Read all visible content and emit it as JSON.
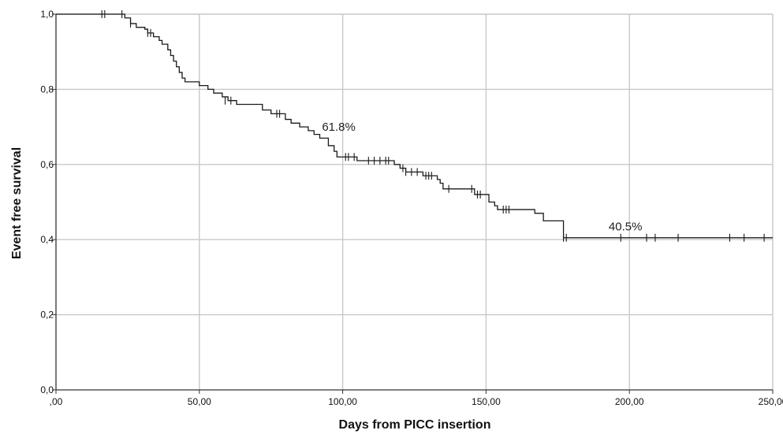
{
  "chart_data": {
    "type": "line",
    "subtype": "kaplan-meier step curve with censor marks",
    "xlabel": "Days from PICC insertion",
    "ylabel": "Event free survival",
    "xlim": [
      0,
      250
    ],
    "ylim": [
      0,
      1.0
    ],
    "x_ticks": [
      0,
      50,
      100,
      150,
      200,
      250
    ],
    "x_tick_labels": [
      ",00",
      "50,00",
      "100,00",
      "150,00",
      "200,00",
      "250,00"
    ],
    "y_ticks": [
      0,
      0.2,
      0.4,
      0.6,
      0.8,
      1.0
    ],
    "y_tick_labels": [
      "0,0",
      "0,2",
      "0,4",
      "0,6",
      "0,8",
      "1,0"
    ],
    "grid": true,
    "colors": {
      "curve": "#1a1a1a",
      "grid": "#c8c8c8",
      "axis": "#333333",
      "text": "#111111"
    },
    "series": [
      {
        "steps": [
          [
            0,
            1.0
          ],
          [
            24,
            0.99
          ],
          [
            26,
            0.975
          ],
          [
            28,
            0.965
          ],
          [
            31,
            0.96
          ],
          [
            32,
            0.95
          ],
          [
            34,
            0.94
          ],
          [
            36,
            0.93
          ],
          [
            37,
            0.92
          ],
          [
            39,
            0.905
          ],
          [
            40,
            0.89
          ],
          [
            41,
            0.875
          ],
          [
            42,
            0.86
          ],
          [
            43,
            0.845
          ],
          [
            44,
            0.83
          ],
          [
            45,
            0.82
          ],
          [
            50,
            0.81
          ],
          [
            53,
            0.8
          ],
          [
            55,
            0.79
          ],
          [
            58,
            0.78
          ],
          [
            60,
            0.77
          ],
          [
            63,
            0.76
          ],
          [
            72,
            0.745
          ],
          [
            75,
            0.735
          ],
          [
            80,
            0.72
          ],
          [
            82,
            0.71
          ],
          [
            85,
            0.7
          ],
          [
            88,
            0.69
          ],
          [
            90,
            0.68
          ],
          [
            92,
            0.67
          ],
          [
            95,
            0.65
          ],
          [
            97,
            0.635
          ],
          [
            98,
            0.62
          ],
          [
            105,
            0.61
          ],
          [
            118,
            0.6
          ],
          [
            120,
            0.59
          ],
          [
            122,
            0.58
          ],
          [
            128,
            0.57
          ],
          [
            133,
            0.56
          ],
          [
            134,
            0.55
          ],
          [
            135,
            0.535
          ],
          [
            146,
            0.52
          ],
          [
            151,
            0.5
          ],
          [
            153,
            0.49
          ],
          [
            154,
            0.48
          ],
          [
            167,
            0.47
          ],
          [
            170,
            0.45
          ],
          [
            177,
            0.405
          ],
          [
            250,
            0.405
          ]
        ],
        "censored": [
          [
            16,
            1.0
          ],
          [
            17,
            1.0
          ],
          [
            23,
            1.0
          ],
          [
            26,
            0.975
          ],
          [
            32,
            0.95
          ],
          [
            33,
            0.95
          ],
          [
            59,
            0.77
          ],
          [
            61,
            0.77
          ],
          [
            77,
            0.735
          ],
          [
            78,
            0.735
          ],
          [
            101,
            0.62
          ],
          [
            102,
            0.62
          ],
          [
            104,
            0.62
          ],
          [
            109,
            0.61
          ],
          [
            111,
            0.61
          ],
          [
            113,
            0.61
          ],
          [
            115,
            0.61
          ],
          [
            116,
            0.61
          ],
          [
            121,
            0.59
          ],
          [
            122,
            0.58
          ],
          [
            124,
            0.58
          ],
          [
            126,
            0.58
          ],
          [
            129,
            0.57
          ],
          [
            130,
            0.57
          ],
          [
            131,
            0.57
          ],
          [
            137,
            0.535
          ],
          [
            145,
            0.535
          ],
          [
            147,
            0.52
          ],
          [
            148,
            0.52
          ],
          [
            156,
            0.48
          ],
          [
            157,
            0.48
          ],
          [
            158,
            0.48
          ],
          [
            177,
            0.405
          ],
          [
            178,
            0.405
          ],
          [
            197,
            0.405
          ],
          [
            206,
            0.405
          ],
          [
            209,
            0.405
          ],
          [
            217,
            0.405
          ],
          [
            235,
            0.405
          ],
          [
            240,
            0.405
          ],
          [
            247,
            0.405
          ]
        ]
      }
    ],
    "annotations": [
      {
        "text": "61.8%",
        "x": 100,
        "y": 0.69
      },
      {
        "text": "40.5%",
        "x": 200,
        "y": 0.425
      }
    ]
  }
}
